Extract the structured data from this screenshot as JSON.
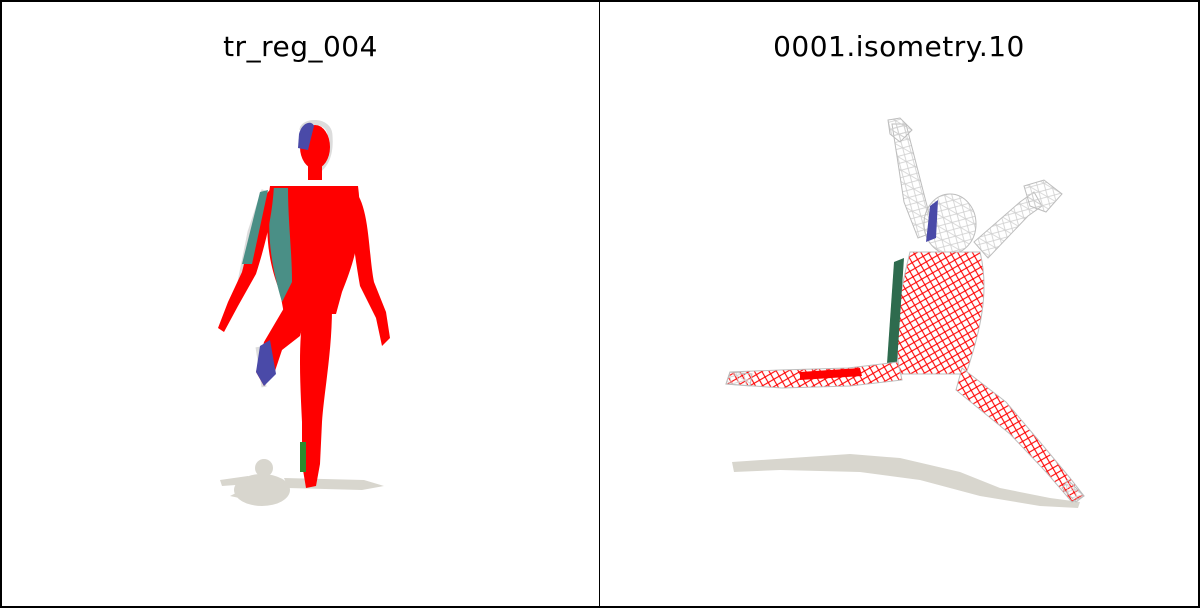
{
  "panels": [
    {
      "title": "tr_reg_004"
    },
    {
      "title": "0001.isometry.10"
    }
  ],
  "colors": {
    "mesh_primary": "#ff0000",
    "error_teal": "#4a8f86",
    "error_blue": "#4a4aa8",
    "error_green": "#2e8b2e",
    "wireframe": "#e8e8e8",
    "shadow": "#d8d6ce",
    "background": "#ffffff",
    "border": "#000000"
  }
}
